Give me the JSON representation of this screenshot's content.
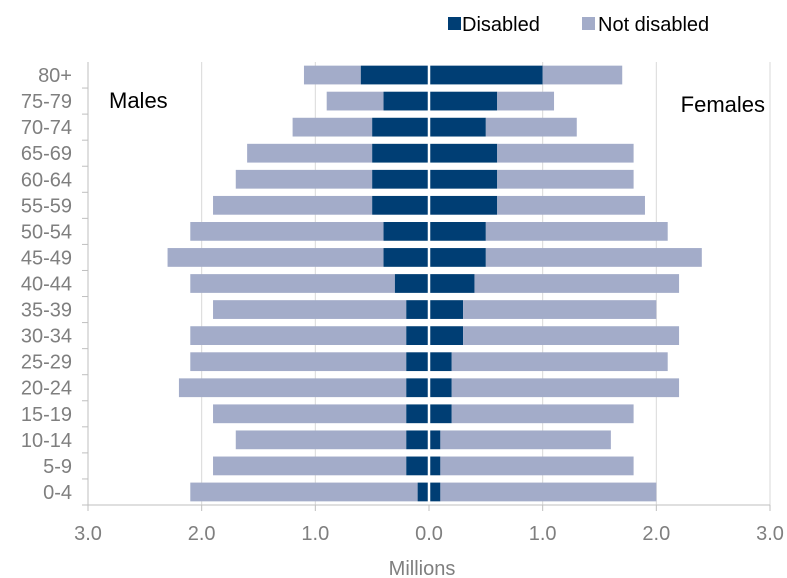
{
  "chart_data": {
    "type": "bar",
    "orientation": "horizontal",
    "layout": "population-pyramid",
    "stacked": true,
    "categories": [
      "0-4",
      "5-9",
      "10-14",
      "15-19",
      "20-24",
      "25-29",
      "30-34",
      "35-39",
      "40-44",
      "45-49",
      "50-54",
      "55-59",
      "60-64",
      "65-69",
      "70-74",
      "75-79",
      "80+"
    ],
    "series": [
      {
        "name": "Disabled",
        "color": "#003e74",
        "males": [
          0.1,
          0.2,
          0.2,
          0.2,
          0.2,
          0.2,
          0.2,
          0.2,
          0.3,
          0.4,
          0.4,
          0.5,
          0.5,
          0.5,
          0.5,
          0.4,
          0.6
        ],
        "females": [
          0.1,
          0.1,
          0.1,
          0.2,
          0.2,
          0.2,
          0.3,
          0.3,
          0.4,
          0.5,
          0.5,
          0.6,
          0.6,
          0.6,
          0.5,
          0.6,
          1.0
        ]
      },
      {
        "name": "Not disabled",
        "color": "#a3acc9",
        "males": [
          2.0,
          1.7,
          1.5,
          1.7,
          2.0,
          1.9,
          1.9,
          1.7,
          1.8,
          1.9,
          1.7,
          1.4,
          1.2,
          1.1,
          0.7,
          0.5,
          0.5
        ],
        "females": [
          1.9,
          1.7,
          1.5,
          1.6,
          2.0,
          1.9,
          1.9,
          1.7,
          1.8,
          1.9,
          1.6,
          1.3,
          1.2,
          1.2,
          0.8,
          0.5,
          0.7
        ]
      }
    ],
    "males_total": [
      2.1,
      1.9,
      1.7,
      1.9,
      2.2,
      2.1,
      2.1,
      1.9,
      2.1,
      2.3,
      2.1,
      1.9,
      1.7,
      1.6,
      1.2,
      0.9,
      1.1
    ],
    "females_total": [
      2.0,
      1.8,
      1.6,
      1.8,
      2.2,
      2.1,
      2.2,
      2.0,
      2.2,
      2.4,
      2.1,
      1.9,
      1.8,
      1.8,
      1.3,
      1.1,
      1.7
    ],
    "xlim": [
      -3.0,
      3.0
    ],
    "xticks": [
      "3.0",
      "2.0",
      "1.0",
      "0.0",
      "1.0",
      "2.0",
      "3.0"
    ],
    "xlabel": "Millions",
    "left_label": "Males",
    "right_label": "Females",
    "grid": true,
    "legend": {
      "position": "top-right",
      "entries": [
        "Disabled",
        "Not disabled"
      ]
    }
  }
}
